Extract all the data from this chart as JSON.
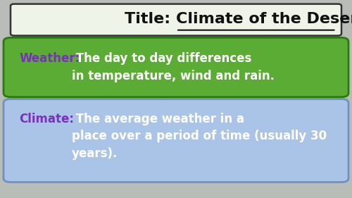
{
  "title_text_prefix": "Title: ",
  "title_text_underlined": "Climate of the Desert",
  "title_bg": "#eef5e8",
  "title_border": "#333333",
  "bg_color": "#b8bdb8",
  "weather_label": "Weather:",
  "weather_text": " The day to day differences\nin temperature, wind and rain.",
  "weather_box_bg": "#5aac35",
  "weather_label_color": "#7b2fbe",
  "weather_text_color": "#ffffff",
  "climate_label": "Climate:",
  "climate_text": " The average weather in a\nplace over a period of time (usually 30\nyears).",
  "climate_box_bg": "#aac4e8",
  "climate_label_color": "#7b2fbe",
  "climate_text_color": "#ffffff",
  "font_size_title": 16,
  "font_size_box": 12
}
